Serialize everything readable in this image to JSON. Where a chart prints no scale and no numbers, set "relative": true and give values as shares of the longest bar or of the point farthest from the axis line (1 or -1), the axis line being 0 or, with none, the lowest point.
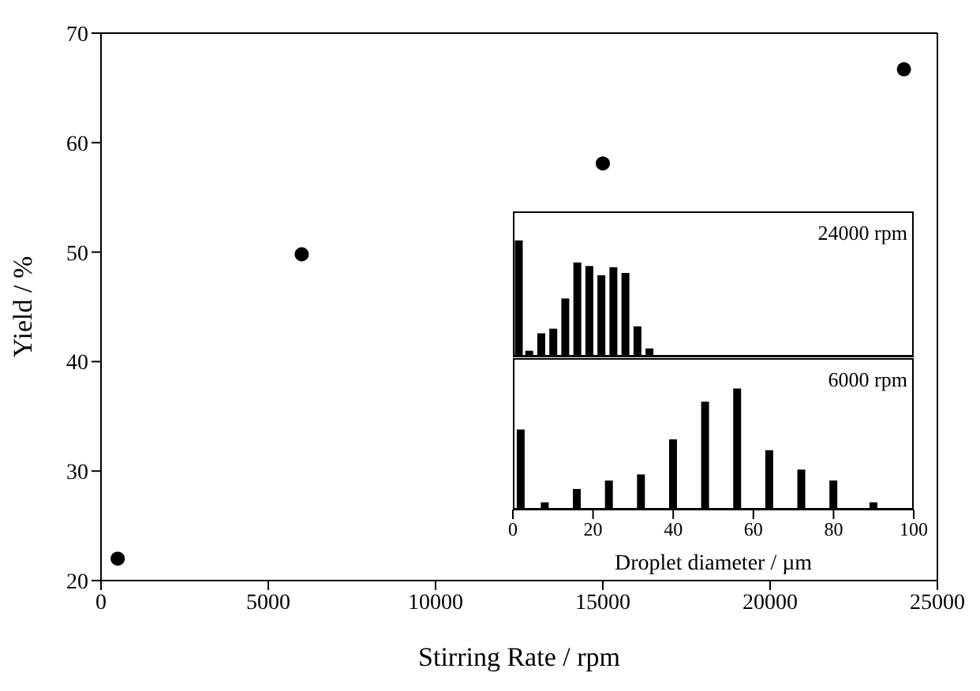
{
  "chart_data": [
    {
      "type": "scatter",
      "xlabel": "Stirring Rate / rpm",
      "ylabel": "Yield / %",
      "x": [
        500,
        6000,
        15000,
        24000
      ],
      "values": [
        22,
        49.8,
        58.1,
        66.7
      ],
      "color": "#000000",
      "marker": "circle",
      "xlim": [
        0,
        25000
      ],
      "xticks": [
        0,
        5000,
        10000,
        15000,
        20000,
        25000
      ],
      "ylim": [
        20,
        70
      ],
      "yticks": [
        20,
        30,
        40,
        50,
        60,
        70
      ]
    },
    {
      "type": "bar",
      "relative": true,
      "x": [
        1.4,
        4,
        7,
        10,
        13,
        16,
        19,
        22,
        25,
        28,
        31,
        34
      ],
      "values": [
        1,
        0.05,
        0.2,
        0.24,
        0.5,
        0.81,
        0.78,
        0.7,
        0.77,
        0.72,
        0.26,
        0.07
      ],
      "color": "#000000",
      "xlim": [
        0,
        100
      ],
      "xticks": [
        0,
        20,
        40,
        60,
        80,
        100
      ],
      "tick_labels": false,
      "annotations": [
        "24000 rpm"
      ]
    },
    {
      "type": "bar",
      "relative": true,
      "xlabel": "Droplet diameter / µm",
      "x": [
        2,
        8,
        16,
        24,
        32,
        40,
        48,
        56,
        64,
        72,
        80,
        90
      ],
      "values": [
        0.66,
        0.06,
        0.17,
        0.24,
        0.29,
        0.58,
        0.89,
        1,
        0.49,
        0.33,
        0.24,
        0.06
      ],
      "color": "#000000",
      "xlim": [
        0,
        100
      ],
      "xticks": [
        0,
        20,
        40,
        60,
        80,
        100
      ],
      "tick_labels": "x",
      "annotations": [
        "6000 rpm"
      ]
    }
  ]
}
